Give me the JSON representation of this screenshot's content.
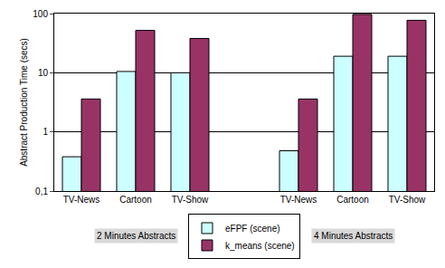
{
  "chart_data": {
    "type": "bar",
    "y_label": "Abstract Production Time (secs)",
    "categories": [
      "TV-News",
      "Cartoon",
      "TV-Show",
      null,
      "TV-News",
      "Cartoon",
      "TV-Show"
    ],
    "series": [
      {
        "name": "eFPF (scene)",
        "color": "#ccffff",
        "values": [
          0.38,
          10.5,
          10,
          null,
          0.48,
          19,
          19
        ]
      },
      {
        "name": "k_means (scene)",
        "color": "#993366",
        "values": [
          3.6,
          52,
          38,
          null,
          3.6,
          97,
          77
        ]
      }
    ],
    "annotations": [
      "2 Minutes Abstracts",
      "4 Minutes Abstracts"
    ],
    "log": "y",
    "ylim": [
      0.1,
      100
    ],
    "yticks": [
      {
        "value": 0.1,
        "label": "0,1"
      },
      1,
      10,
      100
    ],
    "grid": true,
    "legend": "bottom"
  }
}
